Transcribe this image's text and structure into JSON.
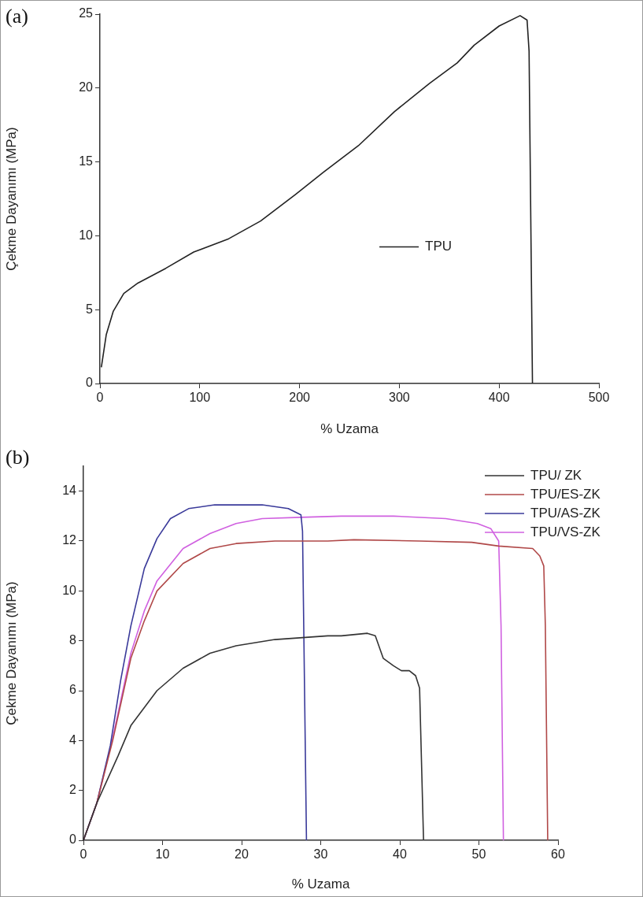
{
  "chart_data": [
    {
      "type": "line",
      "xlabel": "% Uzama",
      "ylabel": "Çekme Dayanımı (MPa)",
      "annotations": [
        "(a)"
      ],
      "legend": "center",
      "xlim": [
        0,
        500
      ],
      "xticks": [
        0,
        100,
        200,
        300,
        400,
        500
      ],
      "ylim": [
        0,
        25
      ],
      "yticks": [
        0,
        5,
        10,
        15,
        20,
        25
      ],
      "series": [
        {
          "name": "TPU",
          "color": "#222222",
          "x": [
            1.4,
            6.3,
            13.4,
            23.9,
            38,
            66,
            94,
            129,
            161,
            196,
            224,
            259,
            295,
            330,
            358,
            375,
            400,
            421,
            428,
            430,
            433.4
          ],
          "values": [
            1.1,
            3.3,
            4.9,
            6.1,
            6.8,
            7.8,
            8.9,
            9.8,
            11.0,
            12.8,
            14.3,
            16.1,
            18.4,
            20.3,
            21.7,
            22.9,
            24.2,
            24.9,
            24.6,
            22.5,
            0
          ]
        }
      ]
    },
    {
      "type": "line",
      "xlabel": "% Uzama",
      "ylabel": "Çekme Dayanımı (MPa)",
      "annotations": [
        "(b)"
      ],
      "legend": "top right",
      "xlim": [
        0,
        60
      ],
      "xticks": [
        0,
        10,
        20,
        30,
        40,
        50,
        60
      ],
      "ylim": [
        0,
        15
      ],
      "yticks": [
        0,
        2,
        4,
        6,
        8,
        10,
        12,
        14
      ],
      "series": [
        {
          "name": "TPU/ ZK",
          "color": "#333333",
          "x": [
            0,
            1.7,
            4.4,
            6.0,
            9.3,
            12.6,
            16.0,
            19.3,
            24.2,
            30.9,
            32.6,
            35.9,
            36.9,
            37.9,
            39.2,
            40.2,
            41.2,
            42.0,
            42.5,
            43.0
          ],
          "values": [
            0,
            1.5,
            3.4,
            4.6,
            6.0,
            6.9,
            7.5,
            7.8,
            8.05,
            8.2,
            8.2,
            8.3,
            8.2,
            7.3,
            7.0,
            6.8,
            6.8,
            6.6,
            6.1,
            0
          ]
        },
        {
          "name": "TPU/ES-ZK",
          "color": "#b04848",
          "x": [
            0,
            1.7,
            3.7,
            6.0,
            7.7,
            9.3,
            12.6,
            16.0,
            19.3,
            24.2,
            30.9,
            34.2,
            42.5,
            49.1,
            52.5,
            56.8,
            57.7,
            58.2,
            58.4,
            58.7
          ],
          "values": [
            0,
            1.5,
            4.0,
            7.3,
            8.8,
            10.0,
            11.1,
            11.7,
            11.9,
            12.0,
            12.0,
            12.05,
            12.0,
            11.95,
            11.8,
            11.7,
            11.4,
            11.0,
            8.6,
            0
          ]
        },
        {
          "name": "TPU/AS-ZK",
          "color": "#3a3a9a",
          "x": [
            0,
            1.7,
            3.4,
            4.7,
            6.0,
            7.7,
            9.3,
            11.0,
            13.3,
            16.6,
            22.6,
            25.9,
            27.5,
            27.7,
            28.2
          ],
          "values": [
            0,
            1.5,
            3.8,
            6.4,
            8.6,
            10.9,
            12.1,
            12.9,
            13.3,
            13.45,
            13.45,
            13.3,
            13.05,
            12.4,
            0
          ]
        },
        {
          "name": "TPU/VS-ZK",
          "color": "#d060e0",
          "x": [
            0,
            1.7,
            3.7,
            6.0,
            7.7,
            9.3,
            12.6,
            16.0,
            19.3,
            22.6,
            27.5,
            32.6,
            39.2,
            45.8,
            49.8,
            51.5,
            52.5,
            52.8,
            53.1
          ],
          "values": [
            0,
            1.5,
            4.1,
            7.5,
            9.2,
            10.4,
            11.7,
            12.3,
            12.7,
            12.9,
            12.95,
            13.0,
            13.0,
            12.9,
            12.7,
            12.5,
            12.0,
            8.6,
            0
          ]
        }
      ]
    }
  ]
}
